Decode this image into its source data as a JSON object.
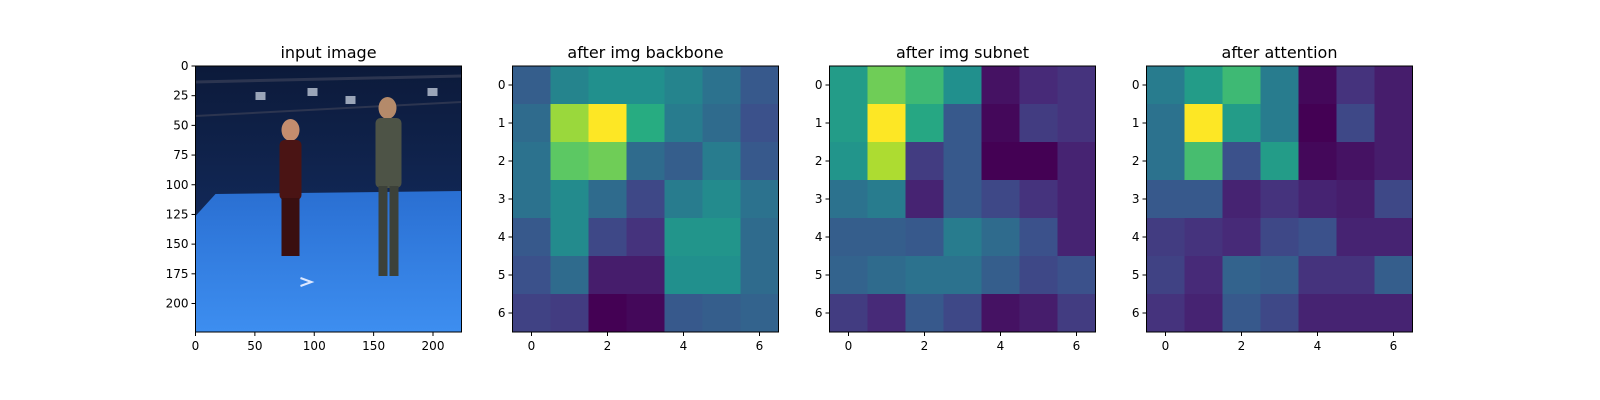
{
  "chart_data": [
    {
      "type": "image",
      "title": "input image",
      "xticks": [
        0,
        50,
        100,
        150,
        200
      ],
      "yticks": [
        0,
        25,
        50,
        75,
        100,
        125,
        150,
        175,
        200
      ],
      "xlim": [
        0,
        224
      ],
      "ylim": [
        224,
        0
      ],
      "image_description": "two people standing in a blue motion-capture studio with cameras on the ceiling"
    },
    {
      "type": "heatmap",
      "title": "after img backbone",
      "colormap": "viridis",
      "xticks": [
        0,
        2,
        4,
        6
      ],
      "yticks": [
        0,
        1,
        2,
        3,
        4,
        5,
        6
      ],
      "values": [
        [
          0.3,
          0.45,
          0.5,
          0.5,
          0.45,
          0.38,
          0.28
        ],
        [
          0.35,
          0.85,
          1.0,
          0.62,
          0.42,
          0.35,
          0.25
        ],
        [
          0.38,
          0.75,
          0.78,
          0.35,
          0.3,
          0.42,
          0.28
        ],
        [
          0.38,
          0.48,
          0.35,
          0.22,
          0.42,
          0.48,
          0.38
        ],
        [
          0.28,
          0.48,
          0.22,
          0.15,
          0.52,
          0.52,
          0.35
        ],
        [
          0.25,
          0.35,
          0.08,
          0.08,
          0.5,
          0.5,
          0.35
        ],
        [
          0.2,
          0.18,
          0.0,
          0.02,
          0.28,
          0.3,
          0.32
        ]
      ]
    },
    {
      "type": "heatmap",
      "title": "after img subnet",
      "colormap": "viridis",
      "xticks": [
        0,
        2,
        4,
        6
      ],
      "yticks": [
        0,
        1,
        2,
        3,
        4,
        5,
        6
      ],
      "values": [
        [
          0.55,
          0.78,
          0.68,
          0.5,
          0.05,
          0.12,
          0.15
        ],
        [
          0.55,
          1.0,
          0.6,
          0.28,
          0.02,
          0.18,
          0.15
        ],
        [
          0.52,
          0.88,
          0.18,
          0.28,
          0.0,
          0.0,
          0.1
        ],
        [
          0.38,
          0.42,
          0.1,
          0.28,
          0.22,
          0.15,
          0.1
        ],
        [
          0.3,
          0.3,
          0.28,
          0.42,
          0.35,
          0.25,
          0.1
        ],
        [
          0.32,
          0.35,
          0.38,
          0.38,
          0.3,
          0.22,
          0.25
        ],
        [
          0.18,
          0.12,
          0.28,
          0.22,
          0.05,
          0.08,
          0.18
        ]
      ]
    },
    {
      "type": "heatmap",
      "title": "after attention",
      "colormap": "viridis",
      "xticks": [
        0,
        2,
        4,
        6
      ],
      "yticks": [
        0,
        1,
        2,
        3,
        4,
        5,
        6
      ],
      "values": [
        [
          0.42,
          0.55,
          0.68,
          0.42,
          0.02,
          0.15,
          0.08
        ],
        [
          0.38,
          1.0,
          0.55,
          0.42,
          0.0,
          0.22,
          0.08
        ],
        [
          0.38,
          0.7,
          0.25,
          0.55,
          0.02,
          0.05,
          0.08
        ],
        [
          0.28,
          0.28,
          0.1,
          0.15,
          0.1,
          0.08,
          0.22
        ],
        [
          0.18,
          0.15,
          0.12,
          0.22,
          0.25,
          0.1,
          0.1
        ],
        [
          0.2,
          0.12,
          0.32,
          0.3,
          0.15,
          0.15,
          0.3
        ],
        [
          0.15,
          0.1,
          0.28,
          0.22,
          0.1,
          0.1,
          0.1
        ]
      ]
    }
  ]
}
